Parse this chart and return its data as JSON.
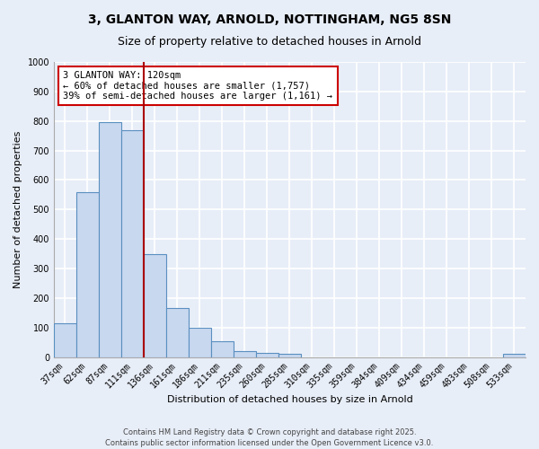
{
  "title": "3, GLANTON WAY, ARNOLD, NOTTINGHAM, NG5 8SN",
  "subtitle": "Size of property relative to detached houses in Arnold",
  "xlabel": "Distribution of detached houses by size in Arnold",
  "ylabel": "Number of detached properties",
  "categories": [
    "37sqm",
    "62sqm",
    "87sqm",
    "111sqm",
    "136sqm",
    "161sqm",
    "186sqm",
    "211sqm",
    "235sqm",
    "260sqm",
    "285sqm",
    "310sqm",
    "335sqm",
    "359sqm",
    "384sqm",
    "409sqm",
    "434sqm",
    "459sqm",
    "483sqm",
    "508sqm",
    "533sqm"
  ],
  "values": [
    115,
    560,
    795,
    770,
    350,
    165,
    100,
    55,
    20,
    15,
    10,
    0,
    0,
    0,
    0,
    0,
    0,
    0,
    0,
    0,
    10
  ],
  "bar_color": "#c8d8ef",
  "bar_edge_color": "#5a8fc0",
  "vline_color": "#aa0000",
  "vline_position": 3.5,
  "annotation_text": "3 GLANTON WAY: 120sqm\n← 60% of detached houses are smaller (1,757)\n39% of semi-detached houses are larger (1,161) →",
  "annotation_box_facecolor": "#ffffff",
  "annotation_box_edgecolor": "#cc0000",
  "ylim": [
    0,
    1000
  ],
  "yticks": [
    0,
    100,
    200,
    300,
    400,
    500,
    600,
    700,
    800,
    900,
    1000
  ],
  "bg_color": "#e8eef8",
  "plot_bg_color": "#e8eef8",
  "grid_color": "#ffffff",
  "grid_linewidth": 1.2,
  "footer_line1": "Contains HM Land Registry data © Crown copyright and database right 2025.",
  "footer_line2": "Contains public sector information licensed under the Open Government Licence v3.0.",
  "title_fontsize": 10,
  "subtitle_fontsize": 9,
  "axis_label_fontsize": 8,
  "tick_fontsize": 7,
  "annotation_fontsize": 7.5,
  "footer_fontsize": 6
}
